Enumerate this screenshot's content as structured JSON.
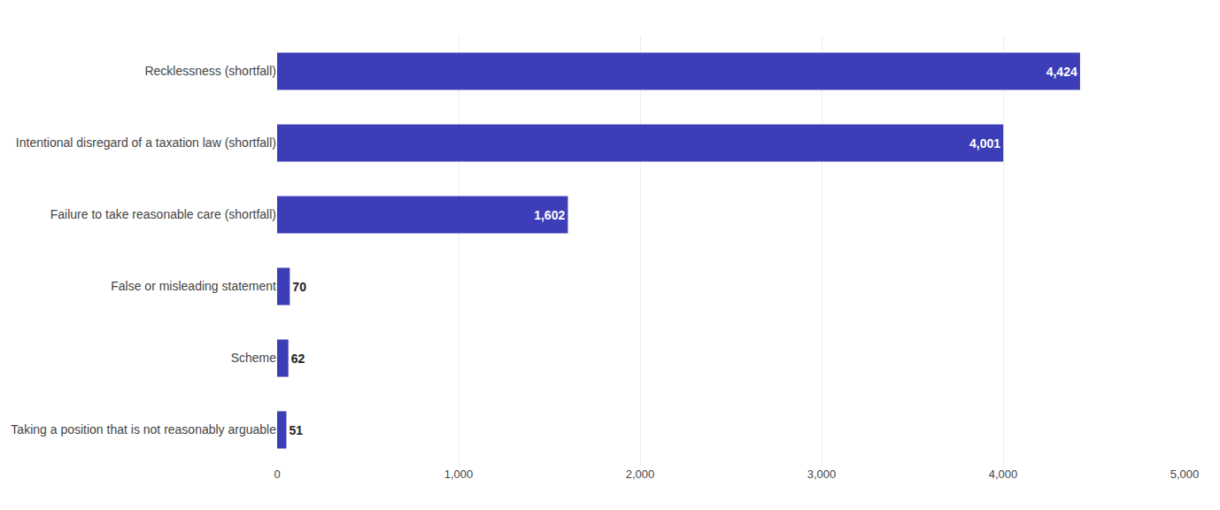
{
  "chart_data": {
    "type": "bar",
    "orientation": "horizontal",
    "categories": [
      "Taking a position that is not reasonably arguable",
      "Scheme",
      "False or misleading statement",
      "Failure to take reasonable care (shortfall)",
      "Intentional disregard of a taxation law (shortfall)",
      "Recklessness (shortfall)"
    ],
    "values": [
      51,
      62,
      70,
      1602,
      4001,
      4424
    ],
    "value_labels": [
      "51",
      "62",
      "70",
      "1,602",
      "4,001",
      "4,424"
    ],
    "data_labels": true,
    "color": "#3d3db8",
    "xlim": [
      0,
      5000
    ],
    "xticks": [
      0,
      {
        "value": 1000,
        "label": "1,000"
      },
      {
        "value": 2000,
        "label": "2,000"
      },
      {
        "value": 3000,
        "label": "3,000"
      },
      {
        "value": 4000,
        "label": "4,000"
      },
      {
        "value": 5000,
        "label": "5,000"
      }
    ],
    "grid": true
  }
}
